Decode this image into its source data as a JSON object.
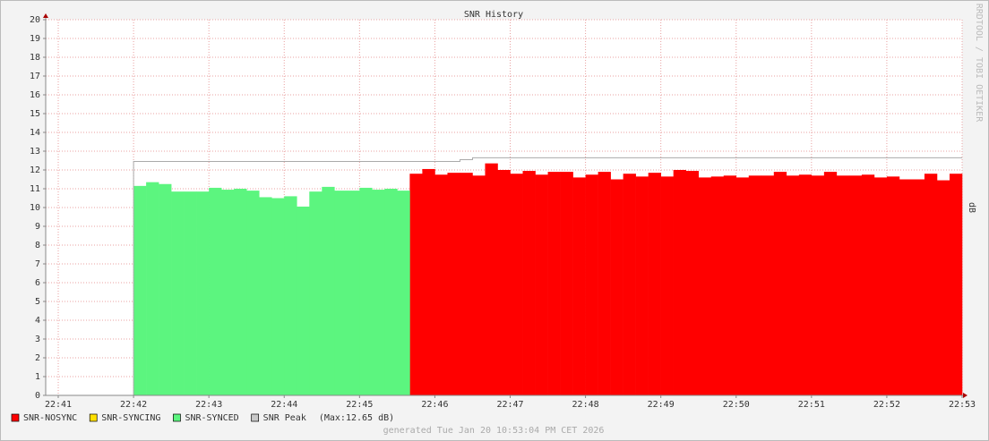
{
  "chart_data": {
    "type": "step-area",
    "title": "SNR History",
    "y_label": "dB",
    "watermark": "RRDTOOL / TOBI OETIKER",
    "footer": "generated Tue Jan 20 10:53:04 PM CET 2026",
    "legend_note": "(Max:12.65 dB)",
    "grid": true,
    "xlim": [
      81650,
      82380
    ],
    "xticks": [
      {
        "value": 81660,
        "label": "22:41"
      },
      {
        "value": 81720,
        "label": "22:42"
      },
      {
        "value": 81780,
        "label": "22:43"
      },
      {
        "value": 81840,
        "label": "22:44"
      },
      {
        "value": 81900,
        "label": "22:45"
      },
      {
        "value": 81960,
        "label": "22:46"
      },
      {
        "value": 82020,
        "label": "22:47"
      },
      {
        "value": 82080,
        "label": "22:48"
      },
      {
        "value": 82140,
        "label": "22:49"
      },
      {
        "value": 82200,
        "label": "22:50"
      },
      {
        "value": 82260,
        "label": "22:51"
      },
      {
        "value": 82320,
        "label": "22:52"
      },
      {
        "value": 82380,
        "label": "22:53"
      }
    ],
    "ylim": [
      0,
      20
    ],
    "yticks": [
      0,
      1,
      2,
      3,
      4,
      5,
      6,
      7,
      8,
      9,
      10,
      11,
      12,
      13,
      14,
      15,
      16,
      17,
      18,
      19,
      20
    ],
    "x": [
      81720,
      81730,
      81740,
      81750,
      81760,
      81770,
      81780,
      81790,
      81800,
      81810,
      81820,
      81830,
      81840,
      81850,
      81860,
      81870,
      81880,
      81890,
      81900,
      81910,
      81920,
      81930,
      81940,
      81950,
      81960,
      81970,
      81980,
      81990,
      82000,
      82010,
      82020,
      82030,
      82040,
      82050,
      82060,
      82070,
      82080,
      82090,
      82100,
      82110,
      82120,
      82130,
      82140,
      82150,
      82160,
      82170,
      82180,
      82190,
      82200,
      82210,
      82220,
      82230,
      82240,
      82250,
      82260,
      82270,
      82280,
      82290,
      82300,
      82310,
      82320,
      82330,
      82340,
      82350,
      82360,
      82370
    ],
    "series": [
      {
        "name": "SNR-NOSYNC",
        "color": "#ff0000",
        "kind": "area",
        "values": [
          null,
          null,
          null,
          null,
          null,
          null,
          null,
          null,
          null,
          null,
          null,
          null,
          null,
          null,
          null,
          null,
          null,
          null,
          null,
          null,
          null,
          null,
          11.8,
          12.05,
          11.75,
          11.85,
          11.85,
          11.7,
          12.35,
          12.0,
          11.8,
          11.95,
          11.75,
          11.9,
          11.9,
          11.6,
          11.75,
          11.9,
          11.5,
          11.8,
          11.65,
          11.85,
          11.65,
          12.0,
          11.95,
          11.6,
          11.65,
          11.7,
          11.6,
          11.7,
          11.7,
          11.9,
          11.7,
          11.75,
          11.7,
          11.9,
          11.7,
          11.7,
          11.75,
          11.6,
          11.65,
          11.5,
          11.5,
          11.8,
          11.45,
          11.8
        ]
      },
      {
        "name": "SNR-SYNCING",
        "color": "#ffe000",
        "kind": "area",
        "values": [
          null,
          null,
          null,
          null,
          null,
          null,
          null,
          null,
          null,
          null,
          null,
          null,
          null,
          null,
          null,
          null,
          null,
          null,
          null,
          null,
          null,
          null,
          null,
          null,
          null,
          null,
          null,
          null,
          null,
          null,
          null,
          null,
          null,
          null,
          null,
          null,
          null,
          null,
          null,
          null,
          null,
          null,
          null,
          null,
          null,
          null,
          null,
          null,
          null,
          null,
          null,
          null,
          null,
          null,
          null,
          null,
          null,
          null,
          null,
          null,
          null,
          null,
          null,
          null,
          null,
          null
        ]
      },
      {
        "name": "SNR-SYNCED",
        "color": "#5cf57f",
        "kind": "area",
        "values": [
          11.15,
          11.35,
          11.25,
          10.85,
          10.85,
          10.85,
          11.05,
          10.95,
          11.0,
          10.9,
          10.55,
          10.5,
          10.6,
          10.05,
          10.85,
          11.1,
          10.9,
          10.9,
          11.05,
          10.95,
          11.0,
          10.9,
          null,
          null,
          null,
          null,
          null,
          null,
          null,
          null,
          null,
          null,
          null,
          null,
          null,
          null,
          null,
          null,
          null,
          null,
          null,
          null,
          null,
          null,
          null,
          null,
          null,
          null,
          null,
          null,
          null,
          null,
          null,
          null,
          null,
          null,
          null,
          null,
          null,
          null,
          null,
          null,
          null,
          null,
          null,
          null
        ]
      },
      {
        "name": "SNR Peak",
        "color": "#c8c8c8",
        "kind": "line",
        "values": [
          12.45,
          12.45,
          12.45,
          12.45,
          12.45,
          12.45,
          12.45,
          12.45,
          12.45,
          12.45,
          12.45,
          12.45,
          12.45,
          12.45,
          12.45,
          12.45,
          12.45,
          12.45,
          12.45,
          12.45,
          12.45,
          12.45,
          12.45,
          12.45,
          12.45,
          12.45,
          12.55,
          12.65,
          12.65,
          12.65,
          12.65,
          12.65,
          12.65,
          12.65,
          12.65,
          12.65,
          12.65,
          12.65,
          12.65,
          12.65,
          12.65,
          12.65,
          12.65,
          12.65,
          12.65,
          12.65,
          12.65,
          12.65,
          12.65,
          12.65,
          12.65,
          12.65,
          12.65,
          12.65,
          12.65,
          12.65,
          12.65,
          12.65,
          12.65,
          12.65,
          12.65,
          12.65,
          12.65,
          12.65,
          12.65,
          12.65
        ]
      }
    ]
  }
}
